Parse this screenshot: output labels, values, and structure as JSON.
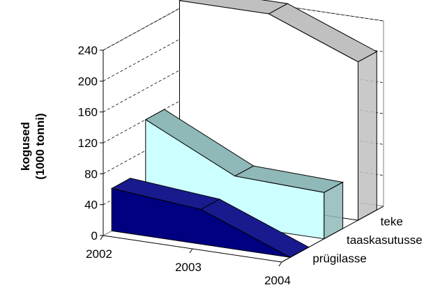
{
  "chart_data": {
    "type": "area",
    "title": "",
    "xlabel": "",
    "ylabel_line1": "kogused",
    "ylabel_line2": "(1000 tonni)",
    "ylim": [
      0,
      240
    ],
    "yticks": [
      "0",
      "40",
      "80",
      "120",
      "160",
      "200",
      "240"
    ],
    "ytick_values": [
      0,
      40,
      80,
      120,
      160,
      200,
      240
    ],
    "categories": [
      "2002",
      "2003",
      "2004"
    ],
    "grid": true,
    "legend": "none",
    "series": [
      {
        "name": "prügilasse",
        "values": [
          55,
          45,
          0
        ],
        "face_color": "#000080",
        "top_color": "#1a1a8f"
      },
      {
        "name": "taaskasutusse",
        "values": [
          120,
          64,
          60
        ],
        "face_color": "#ccffff",
        "top_color": "#8fb8b8"
      },
      {
        "name": "teke",
        "values": [
          250,
          250,
          205
        ],
        "face_color": "#ffffff",
        "top_color": "#c0c0c0"
      }
    ]
  }
}
